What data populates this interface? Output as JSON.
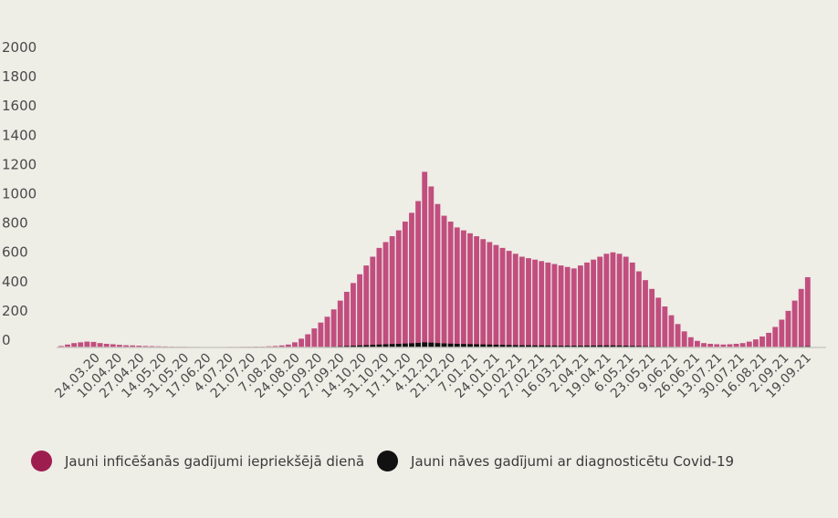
{
  "colors": {
    "cases": "#c14e7e",
    "deaths": "#111111",
    "case_swatch": "#9e1d4f",
    "axis": "#c9c9c4"
  },
  "legend": {
    "cases": "Jauni inficēšanās gadījumi iepriekšējā dienā",
    "deaths": "Jauni nāves gadījumi ar diagnosticētu Covid-19"
  },
  "chart_data": {
    "type": "bar",
    "ylim": [
      0,
      2000
    ],
    "yticks": [
      "0",
      "200",
      "400",
      "600",
      "800",
      "1000",
      "1200",
      "1400",
      "1600",
      "1800",
      "2000"
    ],
    "xtick_labels": [
      "24.03.20",
      "10.04.20",
      "27.04.20",
      "14.05.20",
      "31.05.20",
      "17.06.20",
      "4.07.20",
      "21.07.20",
      "7.08.20",
      "24.08.20",
      "10.09.20",
      "27.09.20",
      "14.10.20",
      "31.10.20",
      "17.11.20",
      "4.12.20",
      "21.12.20",
      "7.01.21",
      "24.01.21",
      "10.02.21",
      "27.02.21",
      "16.03.21",
      "2.04.21",
      "19.04.21",
      "6.05.21",
      "23.05.21",
      "9.06.21",
      "26.06.21",
      "13.07.21",
      "30.07.21",
      "16.08.21",
      "2.09.21",
      "19.09.21"
    ],
    "series": [
      {
        "name": "Jauni inficēšanās gadījumi iepriekšējā dienā",
        "values": [
          10,
          20,
          30,
          35,
          40,
          38,
          30,
          25,
          22,
          18,
          15,
          14,
          12,
          10,
          9,
          8,
          7,
          6,
          5,
          5,
          4,
          4,
          3,
          3,
          3,
          3,
          4,
          4,
          5,
          5,
          6,
          6,
          8,
          10,
          14,
          20,
          35,
          60,
          90,
          130,
          170,
          210,
          260,
          320,
          380,
          440,
          500,
          560,
          620,
          680,
          720,
          760,
          800,
          860,
          920,
          1000,
          1200,
          1100,
          980,
          900,
          860,
          820,
          800,
          780,
          760,
          740,
          720,
          700,
          680,
          660,
          640,
          620,
          610,
          600,
          590,
          580,
          570,
          560,
          550,
          540,
          560,
          580,
          600,
          620,
          640,
          650,
          640,
          620,
          580,
          520,
          460,
          400,
          340,
          280,
          220,
          160,
          110,
          70,
          45,
          30,
          25,
          22,
          20,
          22,
          25,
          30,
          40,
          55,
          75,
          100,
          140,
          190,
          250,
          320,
          400,
          480
        ]
      },
      {
        "name": "Jauni nāves gadījumi ar diagnosticētu Covid-19",
        "values": [
          0,
          0,
          1,
          1,
          1,
          1,
          1,
          1,
          0,
          0,
          0,
          0,
          0,
          0,
          0,
          0,
          0,
          0,
          0,
          0,
          0,
          0,
          0,
          0,
          0,
          0,
          0,
          0,
          0,
          0,
          0,
          0,
          0,
          0,
          0,
          1,
          1,
          2,
          2,
          3,
          4,
          5,
          6,
          8,
          10,
          12,
          14,
          16,
          18,
          20,
          22,
          24,
          25,
          27,
          29,
          31,
          35,
          33,
          30,
          28,
          26,
          25,
          24,
          23,
          22,
          21,
          20,
          19,
          18,
          17,
          16,
          15,
          15,
          14,
          14,
          13,
          13,
          12,
          12,
          12,
          12,
          13,
          13,
          14,
          14,
          14,
          13,
          12,
          11,
          10,
          9,
          8,
          7,
          6,
          5,
          4,
          3,
          2,
          1,
          1,
          1,
          1,
          1,
          1,
          1,
          1,
          1,
          2,
          2,
          3,
          3,
          4,
          5,
          6,
          7,
          8
        ]
      }
    ]
  }
}
